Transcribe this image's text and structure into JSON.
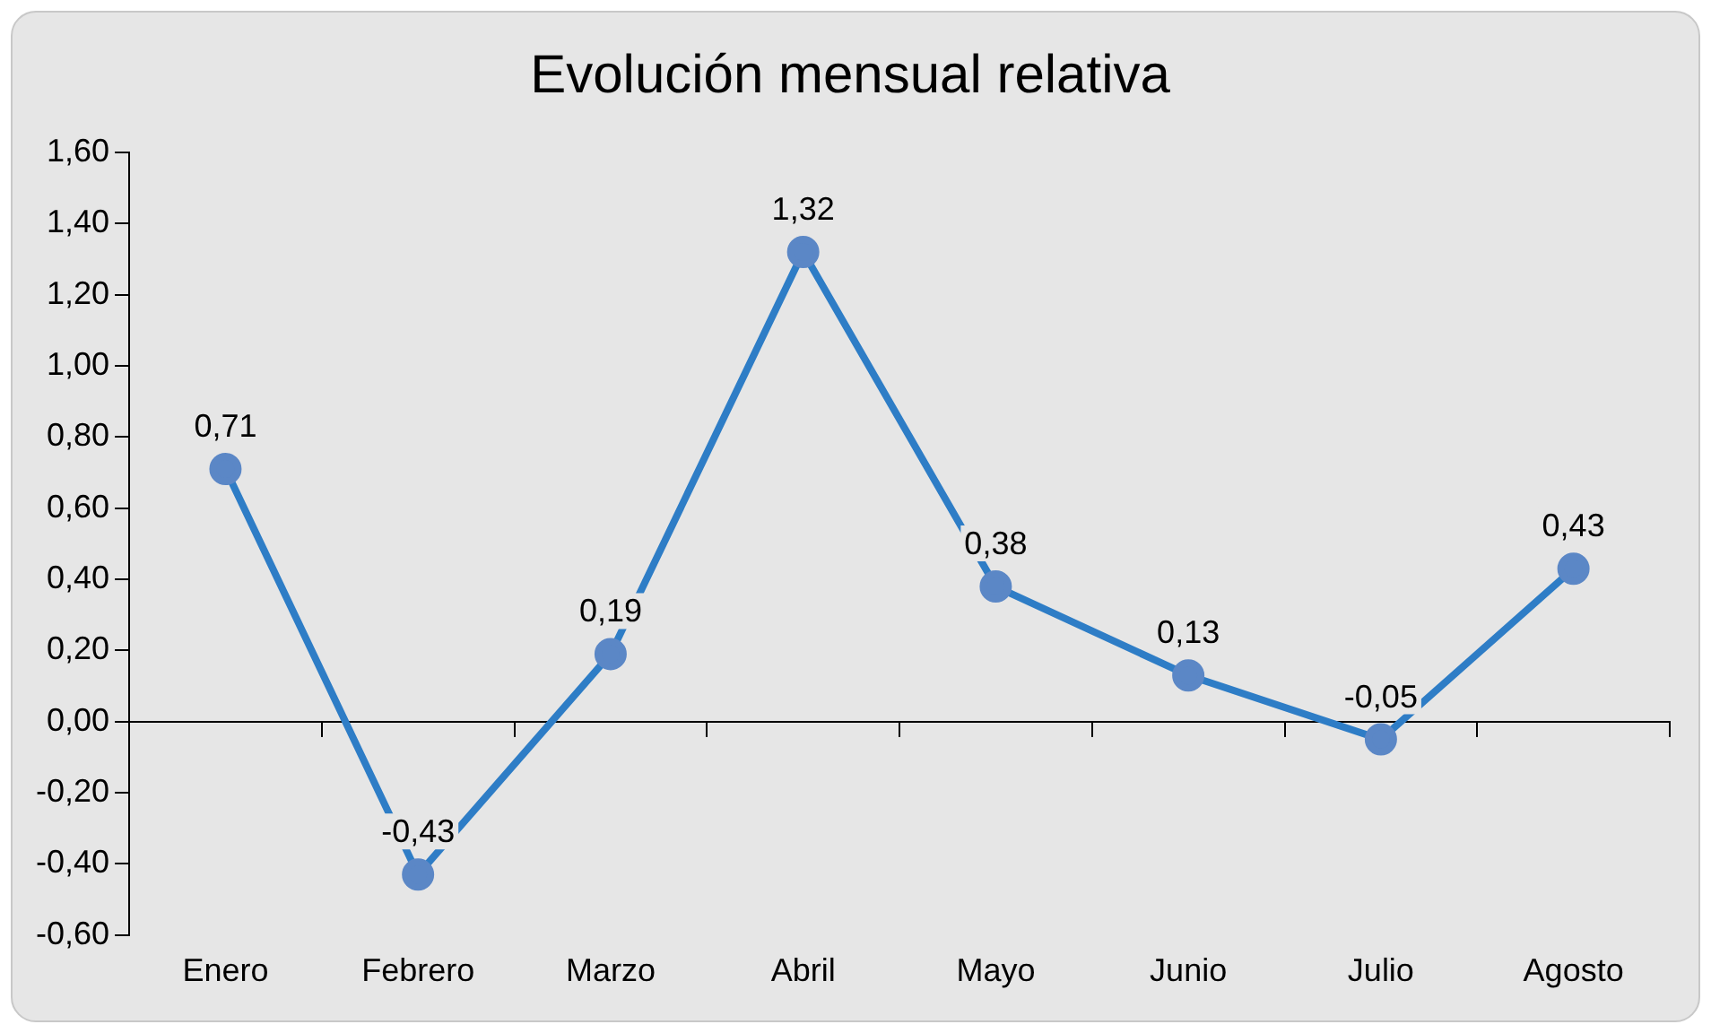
{
  "chart_data": {
    "type": "line",
    "title": "Evolución mensual relativa",
    "categories": [
      "Enero",
      "Febrero",
      "Marzo",
      "Abril",
      "Mayo",
      "Junio",
      "Julio",
      "Agosto"
    ],
    "series": [
      {
        "color": "#2e7dc6",
        "values": [
          0.71,
          -0.43,
          0.19,
          1.32,
          0.38,
          0.13,
          -0.05,
          0.43
        ],
        "value_labels": [
          "0,71",
          "-0,43",
          "0,19",
          "1,32",
          "0,38",
          "0,13",
          "-0,05",
          "0,43"
        ]
      }
    ],
    "ylim": [
      -0.6,
      1.6
    ],
    "yticks": [
      {
        "value": -0.6,
        "label": "-0,60"
      },
      {
        "value": -0.4,
        "label": "-0,40"
      },
      {
        "value": -0.2,
        "label": "-0,20"
      },
      {
        "value": 0,
        "label": "0,00"
      },
      {
        "value": 0.2,
        "label": "0,20"
      },
      {
        "value": 0.4,
        "label": "0,40"
      },
      {
        "value": 0.6,
        "label": "0,60"
      },
      {
        "value": 0.8,
        "label": "0,80"
      },
      {
        "value": 1,
        "label": "1,00"
      },
      {
        "value": 1.2,
        "label": "1,20"
      },
      {
        "value": 1.4,
        "label": "1,40"
      },
      {
        "value": 1.6,
        "label": "1,60"
      }
    ],
    "legend": false,
    "marker": "circle",
    "line_style": "solid"
  }
}
